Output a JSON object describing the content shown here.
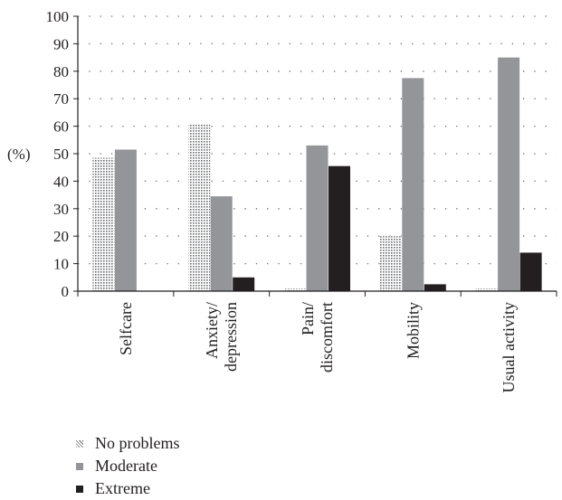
{
  "chart_data": {
    "type": "bar",
    "ylabel": "(%)",
    "ylim": [
      0,
      100
    ],
    "yticks": [
      0,
      10,
      20,
      30,
      40,
      50,
      60,
      70,
      80,
      90,
      100
    ],
    "grid": true,
    "legend_position": "bottom-left",
    "categories": [
      "Selfcare",
      "Anxiety/\ndepression",
      "Pain/\ndiscomfort",
      "Mobility",
      "Usual activity"
    ],
    "series": [
      {
        "name": "No problems",
        "values": [
          48.5,
          61,
          1,
          20,
          1
        ],
        "color": "#c8c8c8",
        "pattern": "dotted"
      },
      {
        "name": "Moderate",
        "values": [
          51.5,
          34.5,
          53,
          77.5,
          85
        ],
        "color": "#939598"
      },
      {
        "name": "Extreme",
        "values": [
          0,
          5,
          45.5,
          2.5,
          14
        ],
        "color": "#231f20"
      }
    ]
  }
}
